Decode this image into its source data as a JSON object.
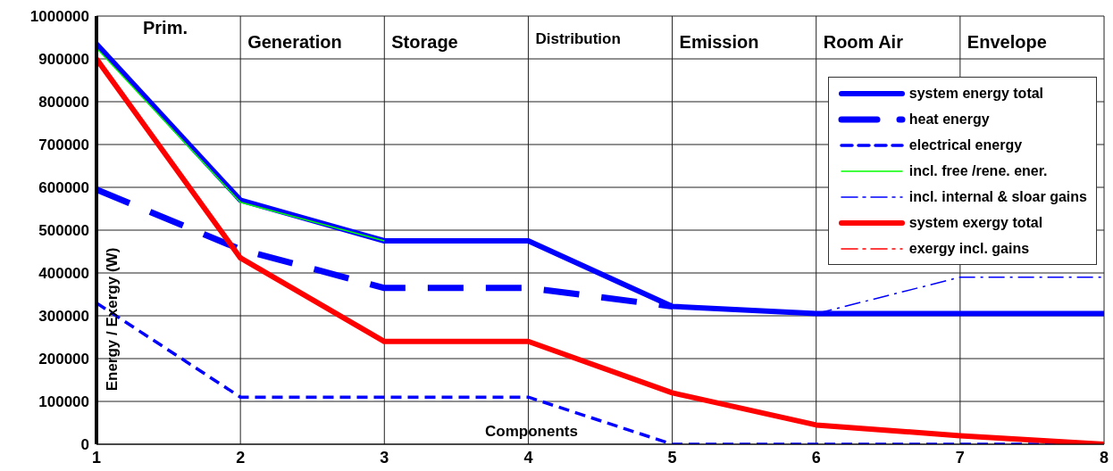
{
  "chart_data": {
    "type": "line",
    "xlabel": "Components",
    "ylabel": "Energy / Exergy (W)",
    "annotations": [
      "Prim.",
      "Generation",
      "Storage",
      "Distribution",
      "Emission",
      "Room Air",
      "Envelope"
    ],
    "x": [
      1,
      2,
      3,
      4,
      5,
      6,
      7,
      8
    ],
    "xlim": [
      1,
      8
    ],
    "xticks": [
      1,
      2,
      3,
      4,
      5,
      6,
      7,
      8
    ],
    "ylim": [
      0,
      1000000
    ],
    "yticks": [
      0,
      100000,
      200000,
      300000,
      400000,
      500000,
      600000,
      700000,
      800000,
      900000,
      1000000
    ],
    "grid": true,
    "legend": "top right",
    "marker": "none",
    "series": [
      {
        "name": "system energy total",
        "color": "#0000ff",
        "line_style": "solid",
        "values": [
          935000,
          570000,
          475000,
          475000,
          322000,
          305000,
          305000,
          305000
        ]
      },
      {
        "name": "heat energy",
        "color": "#0000ff",
        "line_style": "dashed",
        "values": [
          595000,
          455000,
          365000,
          365000,
          322000,
          null,
          null,
          null
        ]
      },
      {
        "name": "electrical energy",
        "color": "#0000ff",
        "line_style": "dashed",
        "values": [
          330000,
          110000,
          110000,
          110000,
          0,
          0,
          0,
          0
        ]
      },
      {
        "name": "incl. free /rene. ener.",
        "color": "#00ff00",
        "line_style": "solid",
        "values": [
          925000,
          565000,
          475000,
          null,
          null,
          null,
          null,
          null
        ]
      },
      {
        "name": "incl. internal & sloar gains",
        "color": "#0000ff",
        "line_style": "dotted",
        "values": [
          null,
          null,
          null,
          null,
          null,
          305000,
          390000,
          390000
        ]
      },
      {
        "name": "system exergy total",
        "color": "#ff0000",
        "line_style": "solid",
        "values": [
          900000,
          435000,
          240000,
          240000,
          120000,
          45000,
          20000,
          0
        ]
      },
      {
        "name": "exergy incl. gains",
        "color": "#ff0000",
        "line_style": "dotted",
        "values": [
          null,
          null,
          null,
          null,
          null,
          null,
          null,
          null
        ]
      }
    ]
  }
}
